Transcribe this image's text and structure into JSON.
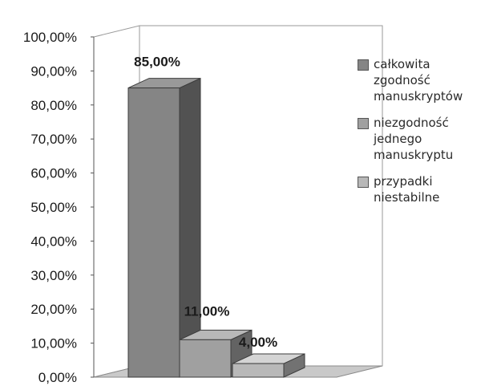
{
  "chart_data": {
    "type": "bar",
    "categories": [
      "całkowita zgodność manuskryptów",
      "niezgodność jednego manuskryptu",
      "przypadki niestabilne"
    ],
    "values": [
      85,
      11,
      4
    ],
    "data_labels": [
      "85,00%",
      "11,00%",
      "4,00%"
    ],
    "y_ticks": [
      "0,00%",
      "10,00%",
      "20,00%",
      "30,00%",
      "40,00%",
      "50,00%",
      "60,00%",
      "70,00%",
      "80,00%",
      "90,00%",
      "100,00%"
    ],
    "ylim": [
      0,
      100
    ],
    "grid": false,
    "three_d": true,
    "legend_position": "right",
    "series": [
      {
        "name": "całkowita zgodność manuskryptów",
        "color": "#858585"
      },
      {
        "name": "niezgodność jednego manuskryptu",
        "color": "#a0a0a0"
      },
      {
        "name": "przypadki niestabilne",
        "color": "#b8b8b8"
      }
    ]
  },
  "legend": {
    "items": [
      {
        "label": "całkowita\nzgodność\nmanuskryptów",
        "color": "#858585"
      },
      {
        "label": "niezgodność\njednego\nmanuskryptu",
        "color": "#a0a0a0"
      },
      {
        "label": "przypadki\nniestabilne",
        "color": "#b8b8b8"
      }
    ]
  }
}
